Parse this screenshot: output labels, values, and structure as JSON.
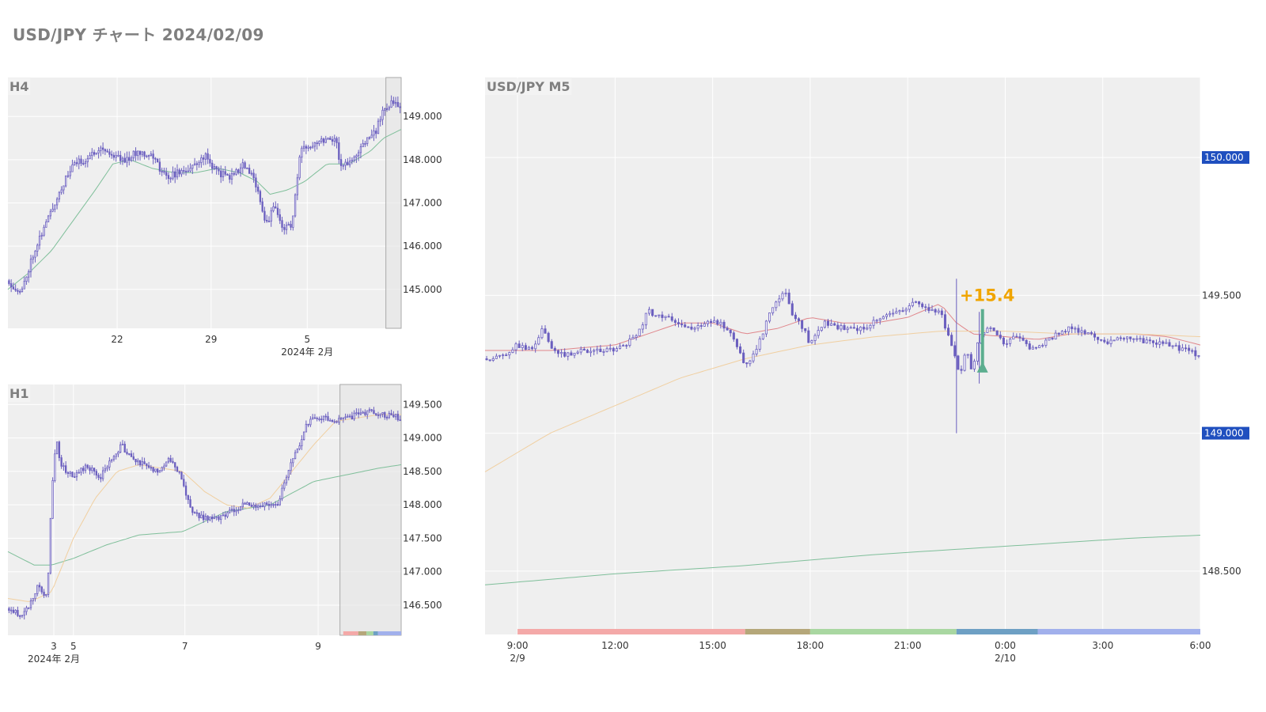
{
  "page": {
    "title": "USD/JPY チャート 2024/02/09"
  },
  "colors": {
    "candle": "#6b5fbf",
    "ma_fast": "#e0868b",
    "ma_mid": "#f0cfa0",
    "ma_slow": "#7fbf9a",
    "price_badge": "#1f4fbf",
    "annotation": "#f0a500",
    "arrow": "#5cae8f",
    "session_colors": [
      "#f4a9a8",
      "#b5a77a",
      "#a9d7a1",
      "#6ea0c4",
      "#a1b0ec"
    ]
  },
  "chart_data": [
    {
      "id": "h4",
      "type": "candlestick",
      "label": "H4",
      "ylim": [
        144.1,
        149.9
      ],
      "yticks": [
        145.0,
        146.0,
        147.0,
        148.0,
        149.0
      ],
      "ytick_labels": [
        "145.000",
        "146.000",
        "147.000",
        "148.000",
        "149.000"
      ],
      "x_range": [
        0,
        180
      ],
      "xticks": [
        {
          "x": 50,
          "label": "22"
        },
        {
          "x": 93,
          "label": "29"
        },
        {
          "x": 137,
          "label": "5"
        }
      ],
      "x_date_label": {
        "x": 137,
        "label": "2024年 2月"
      },
      "highlight_range": [
        173,
        180
      ],
      "anchors": [
        [
          0,
          145.2
        ],
        [
          6,
          144.9
        ],
        [
          12,
          145.9
        ],
        [
          18,
          146.6
        ],
        [
          24,
          147.3
        ],
        [
          30,
          147.9
        ],
        [
          36,
          148.0
        ],
        [
          42,
          148.3
        ],
        [
          48,
          148.1
        ],
        [
          54,
          148.0
        ],
        [
          60,
          148.2
        ],
        [
          66,
          148.1
        ],
        [
          72,
          147.6
        ],
        [
          78,
          147.7
        ],
        [
          84,
          147.8
        ],
        [
          90,
          148.1
        ],
        [
          96,
          147.7
        ],
        [
          102,
          147.6
        ],
        [
          108,
          147.9
        ],
        [
          114,
          147.4
        ],
        [
          118,
          146.5
        ],
        [
          122,
          146.9
        ],
        [
          126,
          146.4
        ],
        [
          130,
          146.5
        ],
        [
          134,
          148.2
        ],
        [
          140,
          148.4
        ],
        [
          146,
          148.5
        ],
        [
          150,
          148.5
        ],
        [
          152,
          147.9
        ],
        [
          156,
          147.9
        ],
        [
          160,
          148.1
        ],
        [
          164,
          148.5
        ],
        [
          168,
          148.6
        ],
        [
          172,
          149.2
        ],
        [
          176,
          149.3
        ],
        [
          180,
          149.2
        ]
      ],
      "mas": [
        {
          "color_key": "ma_slow",
          "points": [
            [
              0,
              145.0
            ],
            [
              10,
              145.4
            ],
            [
              20,
              145.9
            ],
            [
              30,
              146.6
            ],
            [
              40,
              147.3
            ],
            [
              48,
              147.9
            ],
            [
              56,
              148.0
            ],
            [
              66,
              147.8
            ],
            [
              76,
              147.7
            ],
            [
              86,
              147.7
            ],
            [
              96,
              147.8
            ],
            [
              106,
              147.7
            ],
            [
              114,
              147.5
            ],
            [
              120,
              147.2
            ],
            [
              128,
              147.3
            ],
            [
              136,
              147.5
            ],
            [
              146,
              147.9
            ],
            [
              156,
              147.9
            ],
            [
              166,
              148.2
            ],
            [
              172,
              148.5
            ],
            [
              180,
              148.7
            ]
          ]
        }
      ]
    },
    {
      "id": "h1",
      "type": "candlestick",
      "label": "H1",
      "ylim": [
        146.05,
        149.8
      ],
      "yticks": [
        146.5,
        147.0,
        147.5,
        148.0,
        148.5,
        149.0,
        149.5
      ],
      "ytick_labels": [
        "146.500",
        "147.000",
        "147.500",
        "148.000",
        "148.500",
        "149.000",
        "149.500"
      ],
      "x_range": [
        0,
        180
      ],
      "xticks": [
        {
          "x": 21,
          "label": "3"
        },
        {
          "x": 30,
          "label": "5"
        },
        {
          "x": 81,
          "label": "7"
        },
        {
          "x": 142,
          "label": "9"
        }
      ],
      "x_date_label": {
        "x": 21,
        "label": "2024年 2月"
      },
      "highlight_range": [
        152,
        180
      ],
      "session_bar": {
        "x0": 153.5,
        "x1": 180,
        "segments": [
          0.26,
          0.14,
          0.12,
          0.08,
          0.4
        ]
      },
      "anchors": [
        [
          0,
          146.45
        ],
        [
          6,
          146.35
        ],
        [
          10,
          146.5
        ],
        [
          14,
          146.8
        ],
        [
          18,
          146.6
        ],
        [
          19,
          147.4
        ],
        [
          20,
          148.2
        ],
        [
          22,
          149.0
        ],
        [
          24,
          148.6
        ],
        [
          30,
          148.4
        ],
        [
          36,
          148.6
        ],
        [
          42,
          148.4
        ],
        [
          48,
          148.7
        ],
        [
          52,
          148.9
        ],
        [
          56,
          148.7
        ],
        [
          62,
          148.6
        ],
        [
          68,
          148.5
        ],
        [
          74,
          148.7
        ],
        [
          78,
          148.5
        ],
        [
          80,
          148.3
        ],
        [
          84,
          147.9
        ],
        [
          90,
          147.8
        ],
        [
          96,
          147.8
        ],
        [
          102,
          147.9
        ],
        [
          108,
          148.0
        ],
        [
          114,
          148.0
        ],
        [
          120,
          148.0
        ],
        [
          124,
          148.0
        ],
        [
          126,
          148.3
        ],
        [
          130,
          148.7
        ],
        [
          134,
          148.9
        ],
        [
          136,
          149.2
        ],
        [
          140,
          149.3
        ],
        [
          146,
          149.3
        ],
        [
          150,
          149.25
        ],
        [
          156,
          149.3
        ],
        [
          160,
          149.35
        ],
        [
          166,
          149.4
        ],
        [
          172,
          149.35
        ],
        [
          180,
          149.3
        ]
      ],
      "mas": [
        {
          "color_key": "ma_slow",
          "points": [
            [
              0,
              147.3
            ],
            [
              12,
              147.1
            ],
            [
              20,
              147.1
            ],
            [
              30,
              147.2
            ],
            [
              45,
              147.4
            ],
            [
              60,
              147.55
            ],
            [
              80,
              147.6
            ],
            [
              100,
              147.9
            ],
            [
              120,
              148.0
            ],
            [
              140,
              148.35
            ],
            [
              155,
              148.45
            ],
            [
              170,
              148.55
            ],
            [
              180,
              148.6
            ]
          ]
        },
        {
          "color_key": "ma_mid",
          "points": [
            [
              0,
              146.6
            ],
            [
              10,
              146.55
            ],
            [
              20,
              146.7
            ],
            [
              30,
              147.5
            ],
            [
              40,
              148.1
            ],
            [
              50,
              148.5
            ],
            [
              60,
              148.6
            ],
            [
              70,
              148.55
            ],
            [
              80,
              148.5
            ],
            [
              90,
              148.2
            ],
            [
              100,
              148.0
            ],
            [
              110,
              147.95
            ],
            [
              120,
              148.1
            ],
            [
              130,
              148.5
            ],
            [
              140,
              148.9
            ],
            [
              150,
              149.25
            ],
            [
              160,
              149.3
            ],
            [
              170,
              149.35
            ],
            [
              180,
              149.35
            ]
          ]
        }
      ]
    },
    {
      "id": "m5",
      "type": "candlestick",
      "label": "USD/JPY M5",
      "ylim": [
        148.27,
        150.29
      ],
      "yticks": [
        148.5,
        149.5
      ],
      "ytick_labels": [
        "148.500",
        "149.500"
      ],
      "badges": [
        {
          "value": 150.0,
          "label": "150.000"
        },
        {
          "value": 149.0,
          "label": "149.000"
        }
      ],
      "x_range": [
        0,
        220
      ],
      "xticks": [
        {
          "x": 10,
          "label": "9:00",
          "sub": "2/9"
        },
        {
          "x": 40,
          "label": "12:00"
        },
        {
          "x": 70,
          "label": "15:00"
        },
        {
          "x": 100,
          "label": "18:00"
        },
        {
          "x": 130,
          "label": "21:00"
        },
        {
          "x": 160,
          "label": "0:00",
          "sub": "2/10"
        },
        {
          "x": 190,
          "label": "3:00"
        },
        {
          "x": 220,
          "label": "6:00"
        }
      ],
      "session_bar": {
        "x0": 10,
        "x1": 220,
        "bounds": [
          10,
          80,
          100,
          145,
          170,
          220
        ]
      },
      "annotation": {
        "text": "+15.4",
        "x": 146,
        "y": 149.48
      },
      "arrow": {
        "x": 153,
        "y_from": 149.45,
        "y_to": 149.22
      },
      "anchors": [
        [
          0,
          149.27
        ],
        [
          6,
          149.28
        ],
        [
          10,
          149.32
        ],
        [
          14,
          149.3
        ],
        [
          18,
          149.38
        ],
        [
          20,
          149.32
        ],
        [
          24,
          149.28
        ],
        [
          30,
          149.3
        ],
        [
          36,
          149.3
        ],
        [
          40,
          149.3
        ],
        [
          44,
          149.33
        ],
        [
          48,
          149.38
        ],
        [
          50,
          149.45
        ],
        [
          52,
          149.42
        ],
        [
          56,
          149.42
        ],
        [
          60,
          149.4
        ],
        [
          64,
          149.38
        ],
        [
          68,
          149.4
        ],
        [
          72,
          149.4
        ],
        [
          76,
          149.36
        ],
        [
          78,
          149.3
        ],
        [
          80,
          149.24
        ],
        [
          84,
          149.32
        ],
        [
          88,
          149.45
        ],
        [
          92,
          149.52
        ],
        [
          95,
          149.42
        ],
        [
          98,
          149.38
        ],
        [
          100,
          149.32
        ],
        [
          104,
          149.4
        ],
        [
          110,
          149.38
        ],
        [
          116,
          149.38
        ],
        [
          122,
          149.42
        ],
        [
          128,
          149.44
        ],
        [
          132,
          149.48
        ],
        [
          136,
          149.45
        ],
        [
          140,
          149.44
        ],
        [
          144,
          149.3
        ],
        [
          146,
          149.2
        ],
        [
          148,
          149.3
        ],
        [
          150,
          149.22
        ],
        [
          152,
          149.36
        ],
        [
          156,
          149.38
        ],
        [
          160,
          149.32
        ],
        [
          164,
          149.36
        ],
        [
          168,
          149.3
        ],
        [
          172,
          149.33
        ],
        [
          176,
          149.36
        ],
        [
          180,
          149.38
        ],
        [
          186,
          149.36
        ],
        [
          192,
          149.33
        ],
        [
          198,
          149.35
        ],
        [
          204,
          149.33
        ],
        [
          210,
          149.32
        ],
        [
          216,
          149.3
        ],
        [
          220,
          149.28
        ]
      ],
      "spikes": [
        [
          145,
          149.0,
          149.56
        ],
        [
          152,
          149.18,
          149.44
        ]
      ],
      "mas": [
        {
          "color_key": "ma_fast",
          "points": [
            [
              0,
              149.3
            ],
            [
              20,
              149.3
            ],
            [
              40,
              149.32
            ],
            [
              50,
              149.36
            ],
            [
              60,
              149.4
            ],
            [
              70,
              149.4
            ],
            [
              80,
              149.36
            ],
            [
              90,
              149.38
            ],
            [
              100,
              149.42
            ],
            [
              110,
              149.4
            ],
            [
              120,
              149.4
            ],
            [
              130,
              149.42
            ],
            [
              140,
              149.47
            ],
            [
              145,
              149.4
            ],
            [
              150,
              149.36
            ],
            [
              160,
              149.35
            ],
            [
              170,
              149.34
            ],
            [
              180,
              149.36
            ],
            [
              190,
              149.36
            ],
            [
              200,
              149.36
            ],
            [
              210,
              149.35
            ],
            [
              220,
              149.32
            ]
          ]
        },
        {
          "color_key": "ma_mid",
          "points": [
            [
              0,
              148.86
            ],
            [
              20,
              149.0
            ],
            [
              40,
              149.1
            ],
            [
              60,
              149.2
            ],
            [
              80,
              149.27
            ],
            [
              100,
              149.32
            ],
            [
              120,
              149.35
            ],
            [
              140,
              149.37
            ],
            [
              160,
              149.37
            ],
            [
              180,
              149.36
            ],
            [
              200,
              149.36
            ],
            [
              220,
              149.35
            ]
          ]
        },
        {
          "color_key": "ma_slow",
          "points": [
            [
              0,
              148.45
            ],
            [
              40,
              148.49
            ],
            [
              80,
              148.52
            ],
            [
              120,
              148.56
            ],
            [
              160,
              148.59
            ],
            [
              200,
              148.62
            ],
            [
              220,
              148.63
            ]
          ]
        }
      ]
    }
  ]
}
